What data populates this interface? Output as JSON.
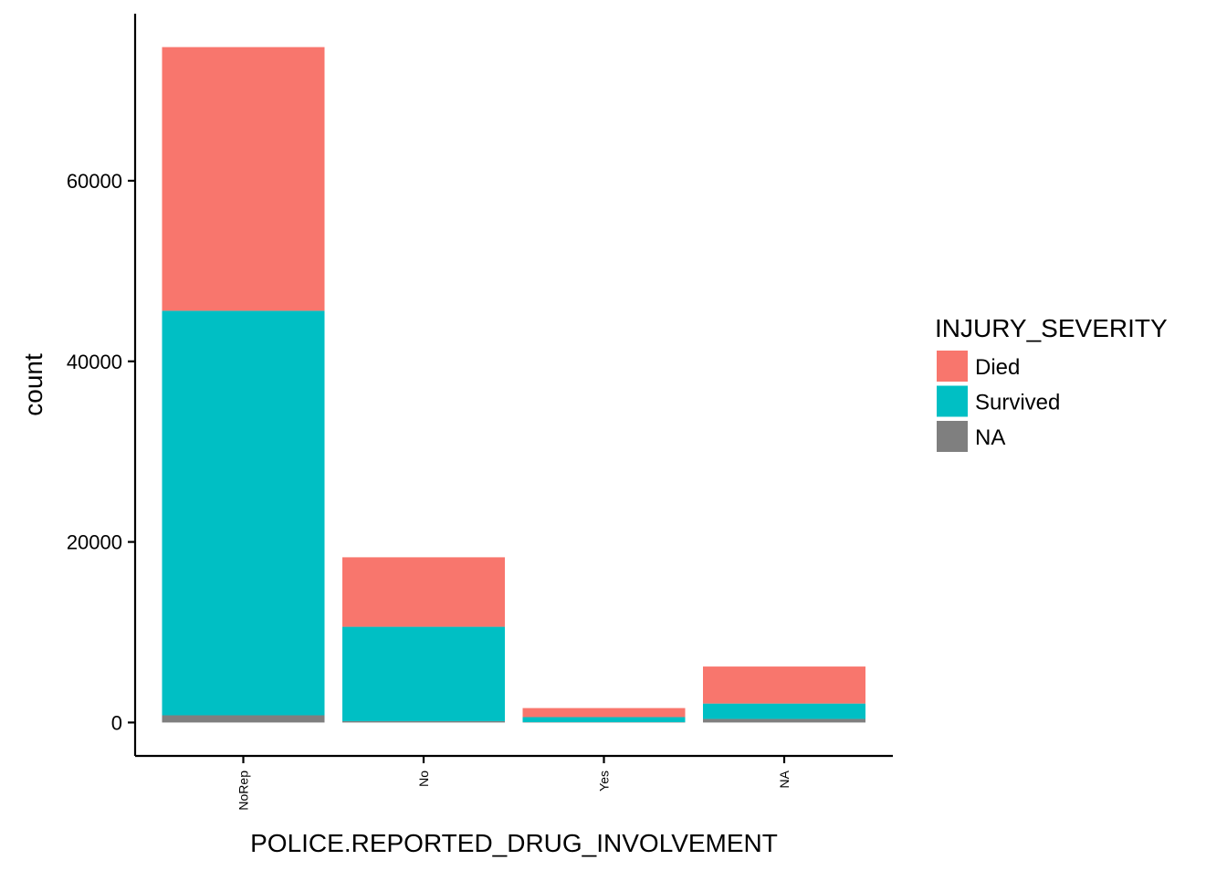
{
  "chart_data": {
    "type": "bar",
    "stacked": true,
    "categories": [
      "NoRep",
      "No",
      "Yes",
      "NA"
    ],
    "series": [
      {
        "name": "NA",
        "color": "#7f7f7f",
        "values": [
          800,
          150,
          40,
          400
        ]
      },
      {
        "name": "Survived",
        "color": "#00bfc4",
        "values": [
          44800,
          10450,
          560,
          1700
        ]
      },
      {
        "name": "Died",
        "color": "#f8766d",
        "values": [
          29200,
          7700,
          1000,
          4100
        ]
      }
    ],
    "xlabel": "POLICE.REPORTED_DRUG_INVOLVEMENT",
    "ylabel": "count",
    "yticks": [
      0,
      20000,
      40000,
      60000
    ],
    "ylim": [
      -3700,
      78500
    ],
    "grid": false,
    "legend": {
      "title": "INJURY_SEVERITY",
      "position": "right",
      "items": [
        {
          "label": "Died",
          "color": "#f8766d"
        },
        {
          "label": "Survived",
          "color": "#00bfc4"
        },
        {
          "label": "NA",
          "color": "#7f7f7f"
        }
      ]
    }
  }
}
